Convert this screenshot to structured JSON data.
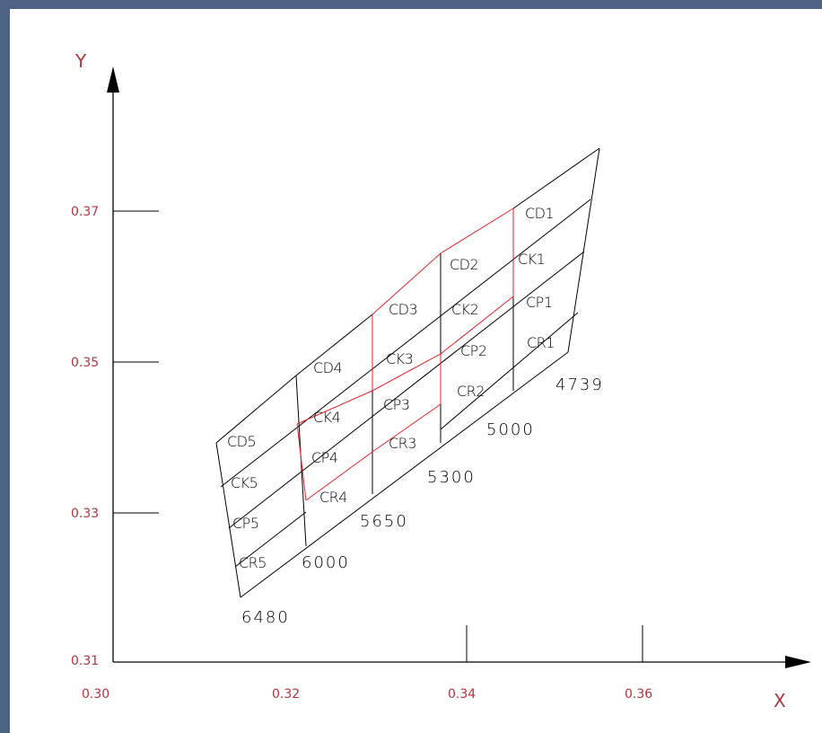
{
  "axes": {
    "x_label": "X",
    "y_label": "Y",
    "x_ticks": [
      "0.30",
      "0.32",
      "0.34",
      "0.36"
    ],
    "y_ticks": [
      "0.37",
      "0.35",
      "0.33",
      "0.31"
    ]
  },
  "temperatures": [
    "4739",
    "5000",
    "5300",
    "5650",
    "6000",
    "6480"
  ],
  "cells": {
    "col1": [
      "CD1",
      "CK1",
      "CP1",
      "CR1"
    ],
    "col2": [
      "CD2",
      "CK2",
      "CP2",
      "CR2"
    ],
    "col3": [
      "CD3",
      "CK3",
      "CP3",
      "CR3"
    ],
    "col4": [
      "CD4",
      "CK4",
      "CP4",
      "CR4"
    ],
    "col5": [
      "CD5",
      "CK5",
      "CP5",
      "CR5"
    ]
  },
  "colors": {
    "frame": "#4e6285",
    "tick_label": "#b0353c",
    "highlight_line": "#e0262a",
    "line": "#000000"
  }
}
